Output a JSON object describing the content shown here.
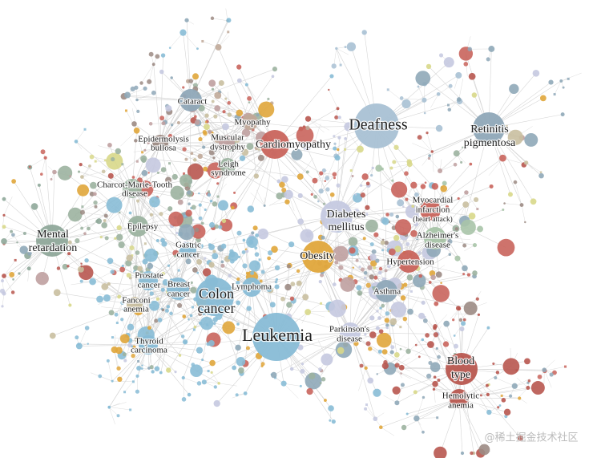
{
  "nodes": [
    {
      "lines": [
        "Deafness"
      ]
    },
    {
      "lines": [
        "Retinitis",
        "pigmentosa"
      ]
    },
    {
      "lines": [
        "Cardiomyopathy"
      ]
    },
    {
      "lines": [
        "Cataract"
      ]
    },
    {
      "lines": [
        "Myopathy"
      ]
    },
    {
      "lines": [
        "Muscular",
        "dystrophy"
      ]
    },
    {
      "lines": [
        "Epidermolysis",
        "bullosa"
      ]
    },
    {
      "lines": [
        "Leigh",
        "syndrome"
      ]
    },
    {
      "lines": [
        "Charcot-Marie-Tooth",
        "disease"
      ]
    },
    {
      "lines": [
        "Epilepsy"
      ]
    },
    {
      "lines": [
        "Mental",
        "retardation"
      ]
    },
    {
      "lines": [
        "Diabetes",
        "mellitus"
      ]
    },
    {
      "lines": [
        "Obesity"
      ]
    },
    {
      "lines": [
        "Myocardial",
        "infarction",
        "(heart attack)"
      ]
    },
    {
      "lines": [
        "Alzheimer's",
        "disease"
      ]
    },
    {
      "lines": [
        "Hypertension"
      ]
    },
    {
      "lines": [
        "Asthma"
      ]
    },
    {
      "lines": [
        "Gastric",
        "cancer"
      ]
    },
    {
      "lines": [
        "Prostate",
        "cancer"
      ]
    },
    {
      "lines": [
        "Breast",
        "cancer"
      ]
    },
    {
      "lines": [
        "Lymphoma"
      ]
    },
    {
      "lines": [
        "Colon",
        "cancer"
      ]
    },
    {
      "lines": [
        "Fanconi",
        "anemia"
      ]
    },
    {
      "lines": [
        "Thyroid",
        "carcinoma"
      ]
    },
    {
      "lines": [
        "Leukemia"
      ]
    },
    {
      "lines": [
        "Parkinson's",
        "disease"
      ]
    },
    {
      "lines": [
        "Blood",
        "type"
      ]
    },
    {
      "lines": [
        "Hemolytic",
        "anemia"
      ]
    }
  ],
  "watermark": "@稀土掘金技术社区"
}
